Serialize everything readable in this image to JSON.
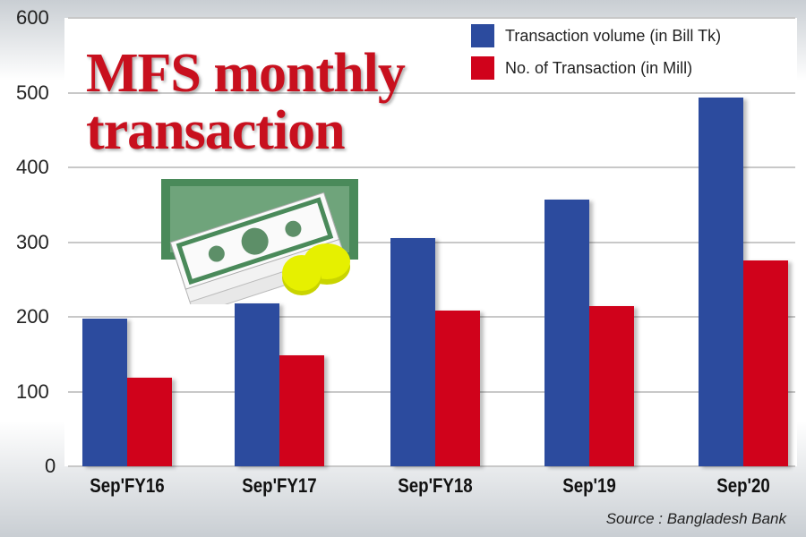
{
  "title_lines": [
    "MFS monthly",
    "transaction"
  ],
  "source": "Source : Bangladesh Bank",
  "legend": [
    {
      "label": "Transaction volume (in Bill Tk)",
      "color": "#2c4b9e"
    },
    {
      "label": "No. of Transaction (in Mill)",
      "color": "#d0021b"
    }
  ],
  "y_ticks": [
    "600",
    "500",
    "400",
    "300",
    "200",
    "100",
    "0"
  ],
  "categories": [
    "Sep'FY16",
    "Sep'FY17",
    "Sep'FY18",
    "Sep'19",
    "Sep'20"
  ],
  "illustration": "money-stack-with-coins-icon",
  "chart_data": {
    "type": "bar",
    "title": "MFS monthly transaction",
    "categories": [
      "Sep'FY16",
      "Sep'FY17",
      "Sep'FY18",
      "Sep'19",
      "Sep'20"
    ],
    "series": [
      {
        "name": "Transaction volume (in Bill Tk)",
        "color": "#2c4b9e",
        "values": [
          198,
          218,
          305,
          357,
          493
        ]
      },
      {
        "name": "No. of Transaction (in Mill)",
        "color": "#d0021b",
        "values": [
          118,
          149,
          208,
          214,
          275
        ]
      }
    ],
    "xlabel": "",
    "ylabel": "",
    "ylim": [
      0,
      600
    ],
    "yticks": [
      0,
      100,
      200,
      300,
      400,
      500,
      600
    ],
    "grid": true,
    "legend_position": "top-right",
    "annotations": [
      "Source : Bangladesh Bank"
    ]
  }
}
